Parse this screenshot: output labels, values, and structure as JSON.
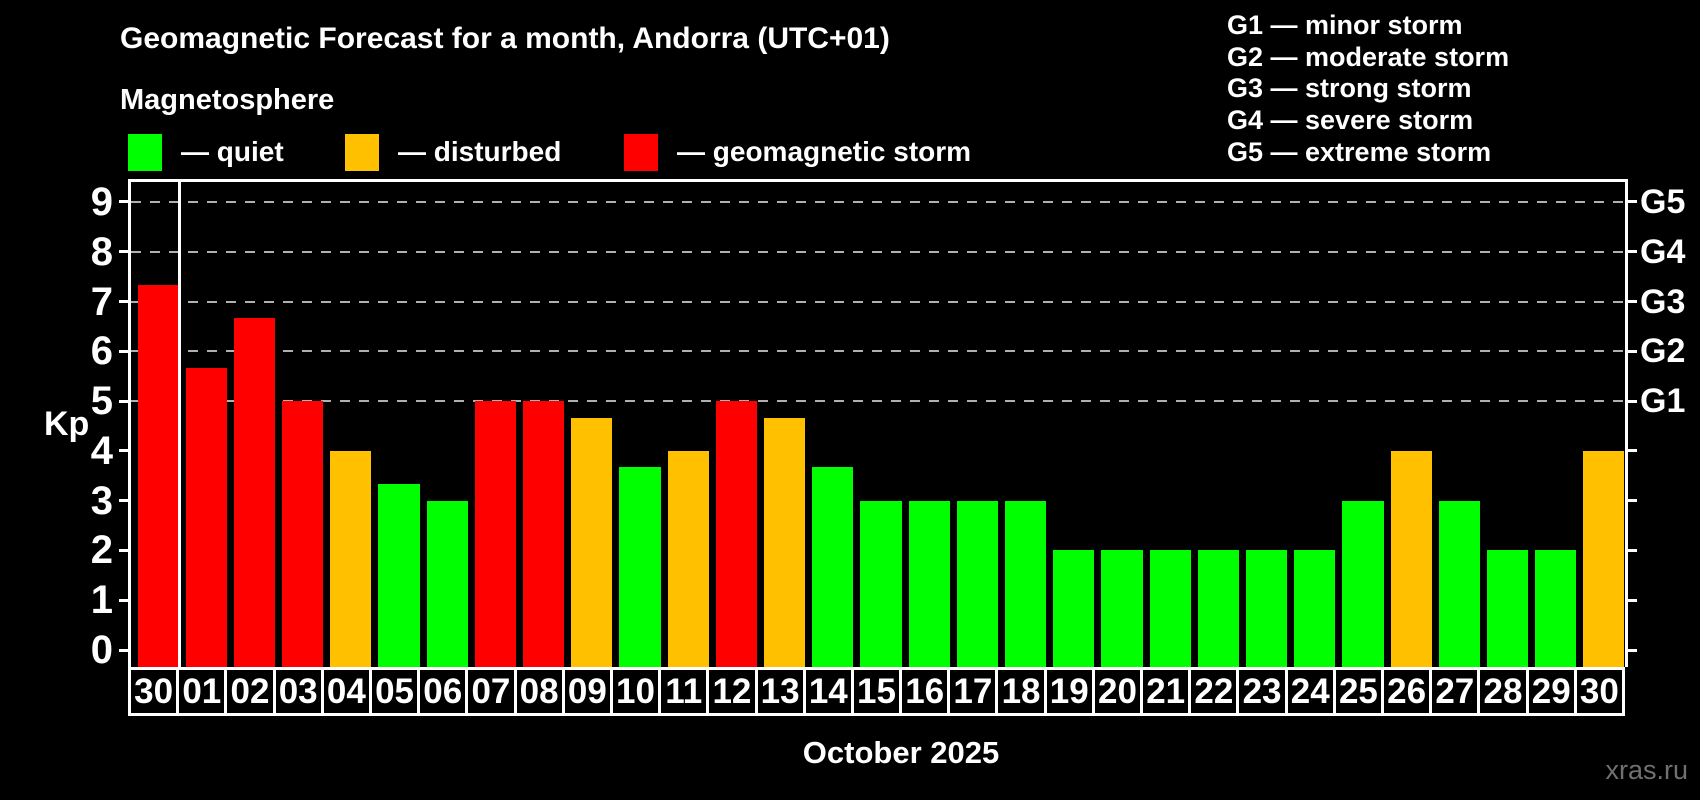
{
  "header": {
    "title": "Geomagnetic Forecast for a month, Andorra (UTC+01)",
    "subtitle": "Magnetosphere"
  },
  "legend": {
    "items": [
      {
        "key": "quiet",
        "label": "— quiet",
        "color": "#00ff00"
      },
      {
        "key": "disturbed",
        "label": "— disturbed",
        "color": "#ffc000"
      },
      {
        "key": "storm",
        "label": "— geomagnetic storm",
        "color": "#ff0000"
      }
    ]
  },
  "g_scale_legend": {
    "lines": [
      "G1 — minor storm",
      "G2 — moderate storm",
      "G3 — strong storm",
      "G4 — severe storm",
      "G5 — extreme storm"
    ]
  },
  "chart_data": {
    "type": "bar",
    "title": "Geomagnetic Forecast for a month, Andorra (UTC+01)",
    "ylabel": "Kp",
    "xlabel": "October 2025",
    "ylim": [
      0,
      9
    ],
    "yticks": [
      0,
      1,
      2,
      3,
      4,
      5,
      6,
      7,
      8,
      9
    ],
    "gridlines_at_kp": [
      5,
      6,
      7,
      8,
      9
    ],
    "legend_position": "top-left",
    "right_axis_labels": [
      {
        "kp": 5,
        "label": "G1"
      },
      {
        "kp": 6,
        "label": "G2"
      },
      {
        "kp": 7,
        "label": "G3"
      },
      {
        "kp": 8,
        "label": "G4"
      },
      {
        "kp": 9,
        "label": "G5"
      }
    ],
    "status_colors": {
      "quiet": "#00ff00",
      "disturbed": "#ffc000",
      "storm": "#ff0000"
    },
    "month_boundary_after_first_bar": true,
    "categories": [
      "30",
      "01",
      "02",
      "03",
      "04",
      "05",
      "06",
      "07",
      "08",
      "09",
      "10",
      "11",
      "12",
      "13",
      "14",
      "15",
      "16",
      "17",
      "18",
      "19",
      "20",
      "21",
      "22",
      "23",
      "24",
      "25",
      "26",
      "27",
      "28",
      "29",
      "30"
    ],
    "values": [
      7.33,
      5.67,
      6.67,
      5,
      4,
      3.33,
      3,
      5,
      5,
      4.67,
      3.67,
      4,
      5,
      4.67,
      3.67,
      3,
      3,
      3,
      3,
      2,
      2,
      2,
      2,
      2,
      2,
      3,
      4,
      3,
      2,
      2,
      4
    ],
    "statuses": [
      "storm",
      "storm",
      "storm",
      "storm",
      "disturbed",
      "quiet",
      "quiet",
      "storm",
      "storm",
      "disturbed",
      "quiet",
      "disturbed",
      "storm",
      "disturbed",
      "quiet",
      "quiet",
      "quiet",
      "quiet",
      "quiet",
      "quiet",
      "quiet",
      "quiet",
      "quiet",
      "quiet",
      "quiet",
      "quiet",
      "disturbed",
      "quiet",
      "quiet",
      "quiet",
      "disturbed"
    ]
  },
  "footer": {
    "caption": "October 2025",
    "watermark": "xras.ru"
  }
}
